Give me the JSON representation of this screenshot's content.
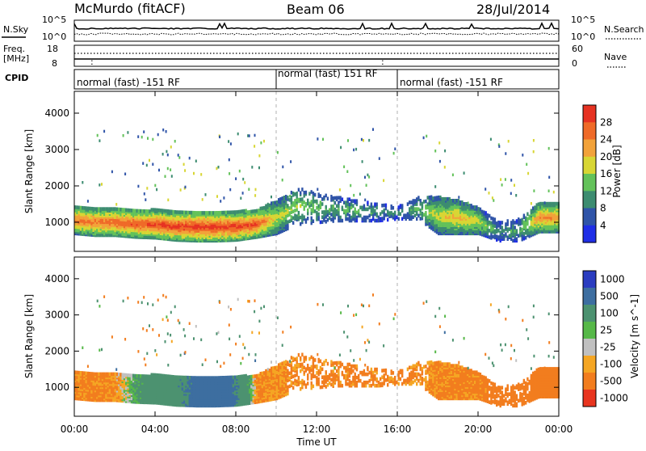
{
  "header": {
    "station": "McMurdo (fitACF)",
    "beam": "Beam 06",
    "date": "28/Jul/2014"
  },
  "top_panels": {
    "nsky_label": "N.Sky",
    "nsearch_label": "N.Search",
    "nsky_ticks": [
      "10^5",
      "10^0"
    ],
    "nsearch_ticks": [
      "10^5",
      "10^0"
    ],
    "freq_label_1": "Freq.",
    "freq_label_2": "[MHz]",
    "freq_ticks": [
      "18",
      "8"
    ],
    "nave_ticks": [
      "60",
      "0"
    ],
    "nave_label": "Nave",
    "cpid_label": "CPID",
    "cpid_segments": [
      {
        "label": "normal (fast) -151 RF",
        "start": 0,
        "end": 10
      },
      {
        "label": "normal (fast) 151 RF",
        "start": 10,
        "end": 16
      },
      {
        "label": "normal (fast) -151 RF",
        "start": 16,
        "end": 24
      }
    ]
  },
  "chart_data": [
    {
      "type": "heatmap",
      "name": "power",
      "xlabel": "",
      "ylabel": "Slant Range [km]",
      "ylim": [
        200,
        4600
      ],
      "xlim": [
        0,
        24
      ],
      "ytick_labels": [
        "1000",
        "2000",
        "3000",
        "4000"
      ],
      "yticks": [
        1000,
        2000,
        3000,
        4000
      ],
      "colorbar": {
        "label": "Power [dB]",
        "range": [
          0,
          32
        ],
        "tick_labels": [
          "4",
          "8",
          "12",
          "16",
          "20",
          "24",
          "28"
        ],
        "ticks": [
          4,
          8,
          12,
          16,
          20,
          24,
          28
        ],
        "colors": [
          "#1f2ee6",
          "#2f54a8",
          "#3c8c70",
          "#63c25a",
          "#d8d634",
          "#f2a23a",
          "#ef6a28",
          "#e63222"
        ]
      },
      "band": {
        "lower_km": [
          700,
          650,
          650,
          600,
          580,
          520,
          500,
          500,
          520,
          600,
          700,
          950,
          1000,
          1050,
          1050,
          1050,
          1100,
          1100,
          700,
          700,
          700,
          500,
          500,
          750
        ],
        "upper_km": [
          1450,
          1400,
          1400,
          1350,
          1350,
          1300,
          1300,
          1300,
          1300,
          1350,
          1600,
          1950,
          1800,
          1700,
          1600,
          1500,
          1450,
          1700,
          1700,
          1600,
          1400,
          1000,
          1100,
          1550
        ],
        "peak_power_db": [
          26,
          26,
          27,
          28,
          29,
          30,
          30,
          30,
          30,
          28,
          18,
          16,
          14,
          12,
          14,
          10,
          10,
          14,
          18,
          22,
          18,
          10,
          12,
          24
        ]
      }
    },
    {
      "type": "heatmap",
      "name": "velocity",
      "xlabel": "Time UT",
      "ylabel": "Slant Range [km]",
      "ylim": [
        200,
        4600
      ],
      "xlim": [
        0,
        24
      ],
      "xtick_labels": [
        "00:00",
        "04:00",
        "08:00",
        "12:00",
        "16:00",
        "20:00",
        "00:00"
      ],
      "xticks": [
        0,
        4,
        8,
        12,
        16,
        20,
        24
      ],
      "ytick_labels": [
        "1000",
        "2000",
        "3000",
        "4000"
      ],
      "yticks": [
        1000,
        2000,
        3000,
        4000
      ],
      "colorbar": {
        "label": "Velocity [m s^-1]",
        "tick_labels": [
          "1000",
          "500",
          "100",
          "25",
          "-25",
          "-100",
          "-500",
          "-1000"
        ],
        "colors": [
          "#2a3cc0",
          "#3d6ea0",
          "#4c9270",
          "#56b848",
          "#c0c0c0",
          "#f5a623",
          "#f27d1e",
          "#e8351f"
        ]
      },
      "band": {
        "lower_km": [
          700,
          650,
          650,
          600,
          580,
          520,
          500,
          500,
          520,
          600,
          700,
          950,
          1000,
          1050,
          1050,
          1050,
          1100,
          1100,
          700,
          700,
          700,
          500,
          500,
          750
        ],
        "upper_km": [
          1450,
          1400,
          1400,
          1350,
          1350,
          1300,
          1300,
          1300,
          1300,
          1350,
          1600,
          1950,
          1800,
          1700,
          1600,
          1500,
          1450,
          1700,
          1700,
          1600,
          1400,
          1000,
          1100,
          1550
        ],
        "velocity_ms": [
          -120,
          -150,
          -100,
          100,
          300,
          400,
          600,
          800,
          500,
          -120,
          -100,
          -130,
          -140,
          -130,
          -150,
          -140,
          -130,
          -120,
          -130,
          -140,
          -150,
          -200,
          -180,
          -300
        ]
      }
    }
  ],
  "colors": {
    "grid_dash": "#b0b0b0",
    "scatter_noise": "#2a3cc0"
  }
}
